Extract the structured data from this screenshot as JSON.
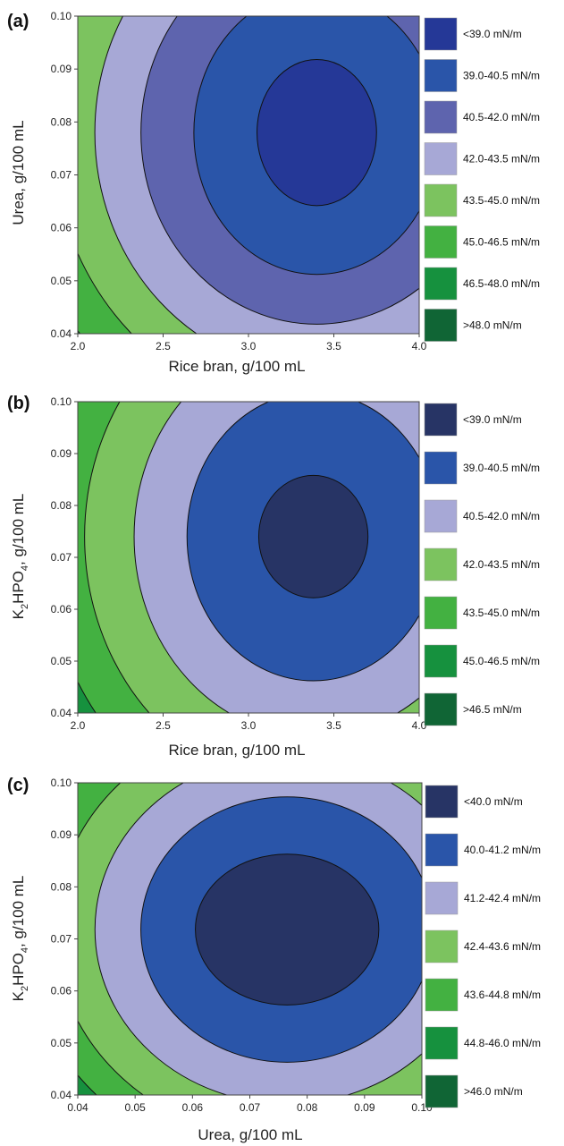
{
  "colors": {
    "panel_a": [
      "#253897",
      "#2a55a9",
      "#5e64ae",
      "#a7a8d6",
      "#7cc35f",
      "#43b141",
      "#16913e",
      "#106535"
    ],
    "panel_b": [
      "#273465",
      "#2a55a9",
      "#a7a8d6",
      "#7cc35f",
      "#43b141",
      "#16913e",
      "#106535"
    ],
    "panel_c": [
      "#273465",
      "#2a55a9",
      "#a7a8d6",
      "#7cc35f",
      "#43b141",
      "#16913e",
      "#106535"
    ]
  },
  "chart_data": [
    {
      "type": "contour",
      "panel_label": "(a)",
      "xlabel": "Rice bran, g/100 mL",
      "ylabel": "Urea, g/100 mL",
      "xlim": [
        2.0,
        4.0
      ],
      "ylim": [
        0.04,
        0.1
      ],
      "xticks": [
        "2.0",
        "2.5",
        "3.0",
        "3.5",
        "4.0"
      ],
      "yticks": [
        "0.04",
        "0.05",
        "0.06",
        "0.07",
        "0.08",
        "0.09",
        "0.10"
      ],
      "center": {
        "x": 3.4,
        "y": 0.078
      },
      "levels": [
        {
          "label": "<39.0 mN/m",
          "rx": 0.35,
          "ry": 0.0138
        },
        {
          "label": "39.0-40.5 mN/m",
          "rx": 0.72,
          "ry": 0.0268
        },
        {
          "label": "40.5-42.0 mN/m",
          "rx": 1.03,
          "ry": 0.0362
        },
        {
          "label": "42.0-43.5 mN/m",
          "rx": 1.3,
          "ry": 0.0452
        },
        {
          "label": "43.5-45.0 mN/m",
          "rx": 1.55,
          "ry": 0.0532
        },
        {
          "label": "45.0-46.5 mN/m",
          "rx": 1.78,
          "ry": 0.0606
        },
        {
          "label": "46.5-48.0 mN/m",
          "rx": 1.98,
          "ry": 0.0672
        },
        {
          "label": ">48.0 mN/m",
          "rx": null,
          "ry": null
        }
      ]
    },
    {
      "type": "contour",
      "panel_label": "(b)",
      "xlabel": "Rice bran, g/100 mL",
      "ylabel": "K2HPO4, g/100 mL",
      "xlim": [
        2.0,
        4.0
      ],
      "ylim": [
        0.04,
        0.1
      ],
      "xticks": [
        "2.0",
        "2.5",
        "3.0",
        "3.5",
        "4.0"
      ],
      "yticks": [
        "0.04",
        "0.05",
        "0.06",
        "0.07",
        "0.08",
        "0.09",
        "0.10"
      ],
      "center": {
        "x": 3.38,
        "y": 0.074
      },
      "levels": [
        {
          "label": "<39.0 mN/m",
          "rx": 0.32,
          "ry": 0.0118
        },
        {
          "label": "39.0-40.5 mN/m",
          "rx": 0.74,
          "ry": 0.0278
        },
        {
          "label": "40.5-42.0 mN/m",
          "rx": 1.05,
          "ry": 0.0385
        },
        {
          "label": "42.0-43.5 mN/m",
          "rx": 1.34,
          "ry": 0.0488
        },
        {
          "label": "43.5-45.0 mN/m",
          "rx": 1.58,
          "ry": 0.0575
        },
        {
          "label": "45.0-46.5 mN/m",
          "rx": 1.8,
          "ry": 0.0652
        },
        {
          "label": ">46.5 mN/m",
          "rx": null,
          "ry": null
        }
      ]
    },
    {
      "type": "contour",
      "panel_label": "(c)",
      "xlabel": "Urea, g/100 mL",
      "ylabel": "K2HPO4, g/100 mL",
      "xlim": [
        0.04,
        0.1
      ],
      "ylim": [
        0.04,
        0.1
      ],
      "xticks": [
        "0.04",
        "0.05",
        "0.06",
        "0.07",
        "0.08",
        "0.09",
        "0.10"
      ],
      "yticks": [
        "0.04",
        "0.05",
        "0.06",
        "0.07",
        "0.08",
        "0.09",
        "0.10"
      ],
      "center": {
        "x": 0.0765,
        "y": 0.0718
      },
      "levels": [
        {
          "label": "<40.0 mN/m",
          "rx": 0.016,
          "ry": 0.0145
        },
        {
          "label": "40.0-41.2 mN/m",
          "rx": 0.0255,
          "ry": 0.0255
        },
        {
          "label": "41.2-42.4 mN/m",
          "rx": 0.0335,
          "ry": 0.0335
        },
        {
          "label": "42.4-43.6 mN/m",
          "rx": 0.0405,
          "ry": 0.0405
        },
        {
          "label": "43.6-44.8 mN/m",
          "rx": 0.046,
          "ry": 0.046
        },
        {
          "label": "44.8-46.0 mN/m",
          "rx": 0.051,
          "ry": 0.051
        },
        {
          "label": ">46.0 mN/m",
          "rx": null,
          "ry": null
        }
      ]
    }
  ]
}
